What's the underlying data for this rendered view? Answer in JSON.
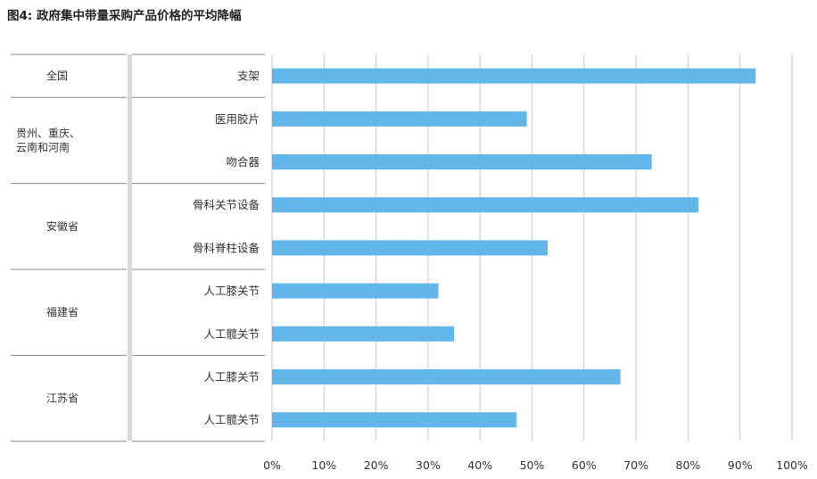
{
  "title": "图4: 政府集中带量采购产品价格的平均降幅",
  "chart_data": {
    "type": "bar",
    "orientation": "horizontal",
    "title": "图4: 政府集中带量采购产品价格的平均降幅",
    "xlabel": "",
    "ylabel": "",
    "xlim": [
      0,
      100
    ],
    "x_ticks": [
      "0%",
      "10%",
      "20%",
      "30%",
      "40%",
      "50%",
      "60%",
      "70%",
      "80%",
      "90%",
      "100%"
    ],
    "grid": "vertical",
    "bar_color": "#62b6e9",
    "groups": [
      {
        "region": [
          "全国"
        ],
        "categories": [
          "支架"
        ],
        "values": [
          93
        ]
      },
      {
        "region": [
          "贵州、重庆、",
          "云南和河南"
        ],
        "categories": [
          "医用胶片",
          "吻合器"
        ],
        "values": [
          49,
          73
        ]
      },
      {
        "region": [
          "安徽省"
        ],
        "categories": [
          "骨科关节设备",
          "骨科脊柱设备"
        ],
        "values": [
          82,
          53
        ]
      },
      {
        "region": [
          "福建省"
        ],
        "categories": [
          "人工膝关节",
          "人工髋关节"
        ],
        "values": [
          32,
          35
        ]
      },
      {
        "region": [
          "江苏省"
        ],
        "categories": [
          "人工膝关节",
          "人工髋关节"
        ],
        "values": [
          67,
          47
        ]
      }
    ]
  }
}
